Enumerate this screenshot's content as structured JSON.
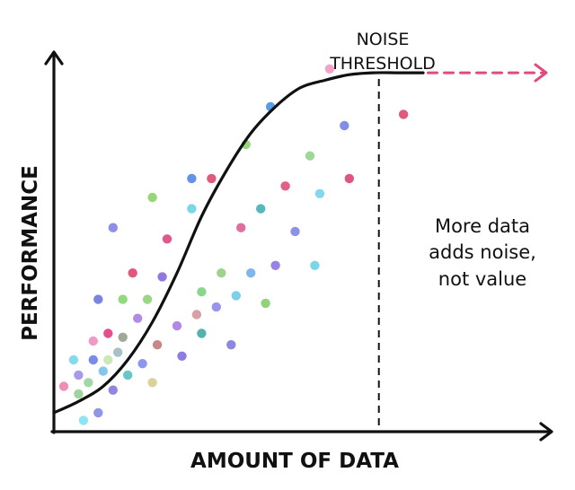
{
  "chart_data": {
    "type": "scatter",
    "xlabel": "AMOUNT OF DATA",
    "ylabel": "PERFORMANCE",
    "xlim": [
      0,
      100
    ],
    "ylim": [
      0,
      100
    ],
    "grid": false,
    "threshold": {
      "x": 66,
      "label_lines": [
        "NOISE",
        "THRESHOLD"
      ],
      "color": "#111111"
    },
    "annotation_lines": [
      "More data",
      "adds noise,",
      "not value"
    ],
    "curve": {
      "name": "",
      "type": "sigmoid",
      "color": "#111111",
      "x": [
        0,
        5,
        10,
        15,
        20,
        25,
        30,
        35,
        40,
        45,
        50,
        55,
        60,
        65,
        70,
        75
      ],
      "y": [
        5,
        8,
        12,
        19,
        29,
        42,
        57,
        69,
        79,
        86,
        91,
        93,
        94.5,
        95,
        95,
        95
      ]
    },
    "extension": {
      "x": [
        76,
        100
      ],
      "y": [
        95,
        95
      ],
      "color": "#e24a7a",
      "style": "dashed-arrow"
    },
    "points": [
      {
        "x": 2,
        "y": 12,
        "color": "#ef8fb8"
      },
      {
        "x": 4,
        "y": 19,
        "color": "#86d9ee"
      },
      {
        "x": 5,
        "y": 15,
        "color": "#a99ae8"
      },
      {
        "x": 5,
        "y": 10,
        "color": "#9ed4a0"
      },
      {
        "x": 6,
        "y": 3,
        "color": "#8fe3f5"
      },
      {
        "x": 7,
        "y": 13,
        "color": "#a3d8a6"
      },
      {
        "x": 8,
        "y": 19,
        "color": "#7a8ce6"
      },
      {
        "x": 8,
        "y": 24,
        "color": "#ef9cc4"
      },
      {
        "x": 9,
        "y": 5,
        "color": "#8f96e3"
      },
      {
        "x": 9,
        "y": 35,
        "color": "#7a85e0"
      },
      {
        "x": 10,
        "y": 16,
        "color": "#85c5ee"
      },
      {
        "x": 11,
        "y": 26,
        "color": "#e5508a"
      },
      {
        "x": 11,
        "y": 19,
        "color": "#cde8b8"
      },
      {
        "x": 12,
        "y": 11,
        "color": "#9187e3"
      },
      {
        "x": 12,
        "y": 54,
        "color": "#8d8ee6"
      },
      {
        "x": 13,
        "y": 21,
        "color": "#a7c2c4"
      },
      {
        "x": 14,
        "y": 25,
        "color": "#9eaa97"
      },
      {
        "x": 14,
        "y": 35,
        "color": "#93d97d"
      },
      {
        "x": 15,
        "y": 15,
        "color": "#67c6c6"
      },
      {
        "x": 16,
        "y": 42,
        "color": "#e2577b"
      },
      {
        "x": 17,
        "y": 30,
        "color": "#b28be6"
      },
      {
        "x": 18,
        "y": 18,
        "color": "#8c96ea"
      },
      {
        "x": 19,
        "y": 35,
        "color": "#9ad685"
      },
      {
        "x": 20,
        "y": 62,
        "color": "#97d679"
      },
      {
        "x": 20,
        "y": 13,
        "color": "#d9d29b"
      },
      {
        "x": 21,
        "y": 23,
        "color": "#c88888"
      },
      {
        "x": 22,
        "y": 41,
        "color": "#9178e0"
      },
      {
        "x": 23,
        "y": 51,
        "color": "#e0588d"
      },
      {
        "x": 25,
        "y": 28,
        "color": "#b486e8"
      },
      {
        "x": 26,
        "y": 20,
        "color": "#8b7ee2"
      },
      {
        "x": 28,
        "y": 67,
        "color": "#6392e6"
      },
      {
        "x": 28,
        "y": 59,
        "color": "#7cd6ea"
      },
      {
        "x": 29,
        "y": 31,
        "color": "#d6a0a6"
      },
      {
        "x": 30,
        "y": 37,
        "color": "#8cd58c"
      },
      {
        "x": 30,
        "y": 26,
        "color": "#57b0b0"
      },
      {
        "x": 32,
        "y": 67,
        "color": "#e0597f"
      },
      {
        "x": 33,
        "y": 33,
        "color": "#9a94e8"
      },
      {
        "x": 34,
        "y": 42,
        "color": "#9ed38c"
      },
      {
        "x": 36,
        "y": 23,
        "color": "#8b87e3"
      },
      {
        "x": 37,
        "y": 36,
        "color": "#7dd0e8"
      },
      {
        "x": 38,
        "y": 54,
        "color": "#df6f9c"
      },
      {
        "x": 39,
        "y": 76,
        "color": "#97d67c"
      },
      {
        "x": 40,
        "y": 42,
        "color": "#7fb7ec"
      },
      {
        "x": 42,
        "y": 59,
        "color": "#54b8bc"
      },
      {
        "x": 43,
        "y": 34,
        "color": "#92d27a"
      },
      {
        "x": 44,
        "y": 86,
        "color": "#5d9be6"
      },
      {
        "x": 45,
        "y": 44,
        "color": "#9a81e4"
      },
      {
        "x": 47,
        "y": 65,
        "color": "#e45e86"
      },
      {
        "x": 49,
        "y": 53,
        "color": "#8e92e4"
      },
      {
        "x": 52,
        "y": 73,
        "color": "#9ed896"
      },
      {
        "x": 53,
        "y": 44,
        "color": "#7cd6ea"
      },
      {
        "x": 54,
        "y": 63,
        "color": "#84d8ec"
      },
      {
        "x": 56,
        "y": 96,
        "color": "#f3a2c8"
      },
      {
        "x": 59,
        "y": 81,
        "color": "#838ee4"
      },
      {
        "x": 60,
        "y": 67,
        "color": "#e15585"
      },
      {
        "x": 71,
        "y": 84,
        "color": "#df5a7d"
      }
    ]
  }
}
